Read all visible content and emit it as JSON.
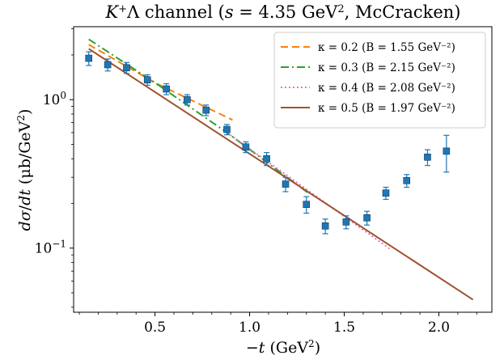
{
  "chart_data": {
    "type": "scatter",
    "title": "K⁺Λ channel (s = 4.35 GeV², McCracken)",
    "xlabel": "−t (GeV²)",
    "ylabel": "dσ/dt (μb/GeV²)",
    "xlim": [
      0.07,
      2.28
    ],
    "ylim": [
      0.037,
      3.1
    ],
    "yscale": "log",
    "grid": false,
    "legend_position": "top-right",
    "x_ticks": [
      {
        "value": 0.5,
        "label": "0.5"
      },
      {
        "value": 1.0,
        "label": "1.0"
      },
      {
        "value": 1.5,
        "label": "1.5"
      },
      {
        "value": 2.0,
        "label": "2.0"
      }
    ],
    "y_ticks": [
      {
        "value": 1.0,
        "base": "10",
        "exp": "0"
      },
      {
        "value": 0.1,
        "base": "10",
        "exp": "−1"
      }
    ],
    "data_points": {
      "color": "#1f77b4",
      "x": [
        0.15,
        0.25,
        0.35,
        0.46,
        0.56,
        0.67,
        0.77,
        0.88,
        0.98,
        1.09,
        1.19,
        1.3,
        1.4,
        1.51,
        1.62,
        1.72,
        1.83,
        1.94,
        2.04
      ],
      "y": [
        1.9,
        1.72,
        1.64,
        1.36,
        1.18,
        1.0,
        0.85,
        0.63,
        0.48,
        0.4,
        0.27,
        0.197,
        0.141,
        0.15,
        0.16,
        0.235,
        0.285,
        0.41,
        0.45
      ],
      "err_lo": [
        0.2,
        0.16,
        0.14,
        0.11,
        0.1,
        0.08,
        0.07,
        0.05,
        0.04,
        0.04,
        0.03,
        0.025,
        0.016,
        0.015,
        0.017,
        0.022,
        0.028,
        0.05,
        0.125
      ],
      "err_hi": [
        0.2,
        0.16,
        0.14,
        0.11,
        0.1,
        0.08,
        0.07,
        0.05,
        0.04,
        0.04,
        0.03,
        0.025,
        0.016,
        0.015,
        0.017,
        0.022,
        0.028,
        0.05,
        0.125
      ]
    },
    "series": [
      {
        "name": "κ = 0.2 (B = 1.55 GeV⁻²)",
        "color": "#ff7f0e",
        "dash": "dashed",
        "x": [
          0.15,
          0.5,
          0.91
        ],
        "y": [
          2.35,
          1.3,
          0.73
        ]
      },
      {
        "name": "κ = 0.3 (B = 2.15 GeV⁻²)",
        "color": "#2ca02c",
        "dash": "dashdot",
        "x": [
          0.15,
          0.5,
          0.88,
          1.31
        ],
        "y": [
          2.55,
          1.3,
          0.6,
          0.235
        ]
      },
      {
        "name": "κ = 0.4 (B = 2.08 GeV⁻²)",
        "color": "#e377c2",
        "dash": "dotted",
        "x": [
          0.88,
          1.75
        ],
        "y": [
          0.6,
          0.097
        ]
      },
      {
        "name": "κ = 0.5 (B = 1.97 GeV⁻²)",
        "color": "#a0522d",
        "dash": "solid",
        "x": [
          0.15,
          2.18
        ],
        "y": [
          2.2,
          0.045
        ]
      }
    ]
  }
}
